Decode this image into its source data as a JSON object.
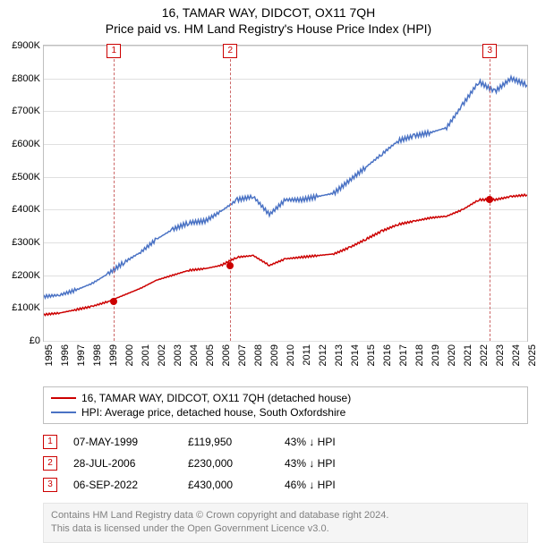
{
  "title": "16, TAMAR WAY, DIDCOT, OX11 7QH",
  "subtitle": "Price paid vs. HM Land Registry's House Price Index (HPI)",
  "chart": {
    "type": "line",
    "background_color": "#ffffff",
    "border_color": "#bfbfbf",
    "grid_color": "#e0e0e0",
    "ylim": [
      0,
      900
    ],
    "ytick_step": 100,
    "ylabel_prefix": "£",
    "ylabel_suffix": "K",
    "x_years": [
      1995,
      1996,
      1997,
      1998,
      1999,
      2000,
      2001,
      2002,
      2003,
      2004,
      2005,
      2006,
      2007,
      2008,
      2009,
      2010,
      2011,
      2012,
      2013,
      2014,
      2015,
      2016,
      2017,
      2018,
      2019,
      2020,
      2021,
      2022,
      2023,
      2024,
      2025
    ],
    "series_price": {
      "color": "#cc0000",
      "line_width": 1.5,
      "label": "16, TAMAR WAY, DIDCOT, OX11 7QH (detached house)",
      "x": [
        1995,
        1996,
        1997,
        1998,
        1999,
        2000,
        2001,
        2002,
        2003,
        2004,
        2005,
        2006,
        2007,
        2008,
        2009,
        2010,
        2011,
        2012,
        2013,
        2014,
        2015,
        2016,
        2017,
        2018,
        2019,
        2020,
        2021,
        2022,
        2023,
        2024,
        2025
      ],
      "y": [
        80,
        85,
        95,
        105,
        120,
        140,
        160,
        185,
        200,
        215,
        220,
        230,
        255,
        260,
        230,
        250,
        255,
        260,
        265,
        285,
        310,
        335,
        355,
        365,
        375,
        380,
        400,
        430,
        430,
        440,
        445
      ]
    },
    "series_hpi": {
      "color": "#4a72c4",
      "line_width": 1.5,
      "label": "HPI: Average price, detached house, South Oxfordshire",
      "x": [
        1995,
        1996,
        1997,
        1998,
        1999,
        2000,
        2001,
        2002,
        2003,
        2004,
        2005,
        2006,
        2007,
        2008,
        2009,
        2010,
        2011,
        2012,
        2013,
        2014,
        2015,
        2016,
        2017,
        2018,
        2019,
        2020,
        2021,
        2022,
        2023,
        2024,
        2025
      ],
      "y": [
        135,
        140,
        155,
        175,
        205,
        240,
        270,
        310,
        340,
        360,
        365,
        395,
        430,
        440,
        385,
        430,
        430,
        440,
        450,
        490,
        530,
        570,
        610,
        625,
        635,
        650,
        720,
        790,
        760,
        800,
        780
      ]
    },
    "markers": [
      {
        "idx": "1",
        "x": 1999.35,
        "y": 120,
        "color": "#cc0000"
      },
      {
        "idx": "2",
        "x": 2006.57,
        "y": 230,
        "color": "#cc0000"
      },
      {
        "idx": "3",
        "x": 2022.68,
        "y": 430,
        "color": "#cc0000"
      }
    ],
    "ref_line_color": "#cc6666"
  },
  "legend": {
    "items": [
      {
        "color": "#cc0000",
        "label": "16, TAMAR WAY, DIDCOT, OX11 7QH (detached house)"
      },
      {
        "color": "#4a72c4",
        "label": "HPI: Average price, detached house, South Oxfordshire"
      }
    ]
  },
  "sales": [
    {
      "idx": "1",
      "date": "07-MAY-1999",
      "price": "£119,950",
      "delta": "43% ↓ HPI",
      "box_color": "#cc0000"
    },
    {
      "idx": "2",
      "date": "28-JUL-2006",
      "price": "£230,000",
      "delta": "43% ↓ HPI",
      "box_color": "#cc0000"
    },
    {
      "idx": "3",
      "date": "06-SEP-2022",
      "price": "£430,000",
      "delta": "46% ↓ HPI",
      "box_color": "#cc0000"
    }
  ],
  "footer": {
    "line1": "Contains HM Land Registry data © Crown copyright and database right 2024.",
    "line2": "This data is licensed under the Open Government Licence v3.0."
  }
}
